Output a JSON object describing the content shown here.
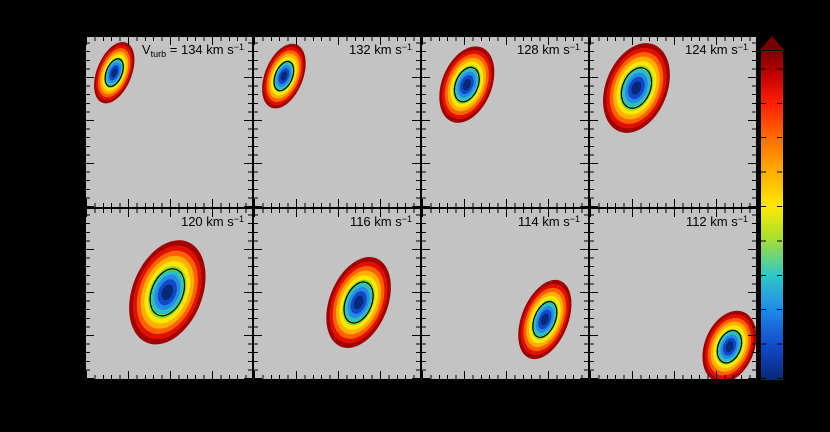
{
  "figure": {
    "background": "#000000",
    "panel_background": "#c3c3c3",
    "axis_color": "#000000",
    "label_color": "#000000"
  },
  "chart_data": {
    "type": "heatmap",
    "layout": {
      "rows": 2,
      "cols": 4,
      "colorbar_position": "right",
      "colorbar_top_color": "#7a0000",
      "colorbar_bottom_color": "#082878"
    },
    "contours": {
      "scales": [
        1.0,
        0.9,
        0.8,
        0.7,
        0.6,
        0.5,
        0.42,
        0.34,
        0.25,
        0.15
      ],
      "colors": [
        "#a00000",
        "#e01000",
        "#ff6000",
        "#ffb000",
        "#ffe800",
        "#78d838",
        "#28c0c8",
        "#2888e8",
        "#1048c8",
        "#082878"
      ],
      "line_scale": 0.45,
      "line_color": "#000000"
    },
    "panels": [
      {
        "prefix": {
          "main": "V",
          "sub": "turb",
          "eq": " = "
        },
        "value": "134",
        "unit": " km s",
        "exp": "−1",
        "blob": {
          "cx": 0.17,
          "cy": 0.21,
          "rx": 0.105,
          "ry": 0.19,
          "rot": 22
        }
      },
      {
        "value": "132",
        "unit": " km s",
        "exp": "−1",
        "blob": {
          "cx": 0.18,
          "cy": 0.23,
          "rx": 0.115,
          "ry": 0.2,
          "rot": 22
        }
      },
      {
        "value": "128",
        "unit": " km s",
        "exp": "−1",
        "blob": {
          "cx": 0.27,
          "cy": 0.28,
          "rx": 0.15,
          "ry": 0.235,
          "rot": 22
        }
      },
      {
        "value": "124",
        "unit": " km s",
        "exp": "−1",
        "blob": {
          "cx": 0.28,
          "cy": 0.3,
          "rx": 0.185,
          "ry": 0.275,
          "rot": 22
        }
      },
      {
        "value": "120",
        "unit": " km s",
        "exp": "−1",
        "blob": {
          "cx": 0.49,
          "cy": 0.49,
          "rx": 0.21,
          "ry": 0.32,
          "rot": 22
        }
      },
      {
        "value": "116",
        "unit": " km s",
        "exp": "−1",
        "blob": {
          "cx": 0.63,
          "cy": 0.55,
          "rx": 0.175,
          "ry": 0.28,
          "rot": 22
        }
      },
      {
        "value": "114",
        "unit": " km s",
        "exp": "−1",
        "blob": {
          "cx": 0.74,
          "cy": 0.65,
          "rx": 0.14,
          "ry": 0.245,
          "rot": 22
        }
      },
      {
        "value": "112",
        "unit": " km s",
        "exp": "−1",
        "blob": {
          "cx": 0.84,
          "cy": 0.81,
          "rx": 0.15,
          "ry": 0.22,
          "rot": 22
        }
      }
    ]
  }
}
